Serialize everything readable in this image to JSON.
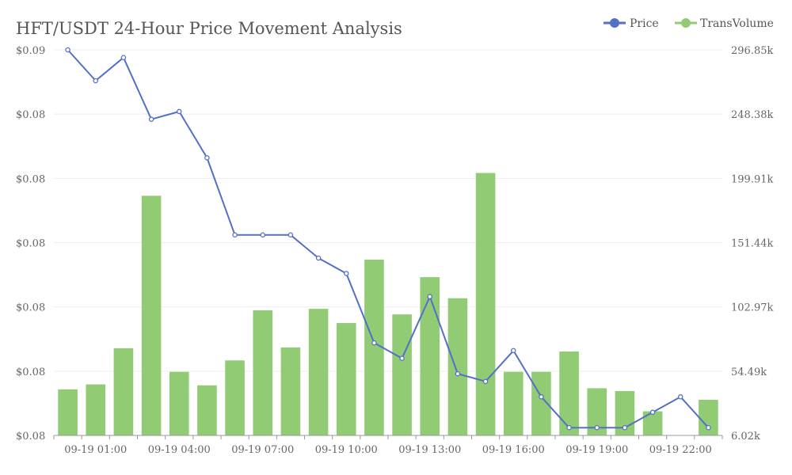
{
  "chart_data": {
    "type": "bar",
    "title": "HFT/USDT 24-Hour Price Movement Analysis",
    "categories": [
      "09-19 00:00",
      "09-19 01:00",
      "09-19 02:00",
      "09-19 03:00",
      "09-19 04:00",
      "09-19 05:00",
      "09-19 06:00",
      "09-19 07:00",
      "09-19 08:00",
      "09-19 09:00",
      "09-19 10:00",
      "09-19 11:00",
      "09-19 12:00",
      "09-19 13:00",
      "09-19 14:00",
      "09-19 15:00",
      "09-19 16:00",
      "09-19 17:00",
      "09-19 18:00",
      "09-19 19:00",
      "09-19 20:00",
      "09-19 21:00",
      "09-19 22:00",
      "09-19 23:00"
    ],
    "x_tick_labels": [
      "09-19 01:00",
      "09-19 04:00",
      "09-19 07:00",
      "09-19 10:00",
      "09-19 13:00",
      "09-19 16:00",
      "09-19 19:00",
      "09-19 22:00"
    ],
    "series": [
      {
        "name": "Price",
        "type": "line",
        "axis": "left",
        "color": "#5470c6",
        "values": [
          0.09,
          0.0896,
          0.0899,
          0.0891,
          0.0892,
          0.0886,
          0.0876,
          0.0876,
          0.0876,
          0.0873,
          0.0871,
          0.0862,
          0.086,
          0.0868,
          0.0858,
          0.0857,
          0.0861,
          0.0855,
          0.0851,
          0.0851,
          0.0851,
          0.0853,
          0.0855,
          0.0851
        ]
      },
      {
        "name": "TransVolume",
        "type": "bar",
        "axis": "right",
        "color": "#91cc75",
        "values": [
          40800,
          44500,
          71800,
          186800,
          54000,
          43800,
          62600,
          100400,
          72400,
          101500,
          90800,
          138600,
          97300,
          125400,
          109500,
          204000,
          54000,
          54000,
          69300,
          41600,
          39500,
          24200,
          6020,
          32900
        ]
      }
    ],
    "left_axis": {
      "min": 0.085,
      "max": 0.09,
      "tick_labels": [
        "$0.08",
        "$0.08",
        "$0.08",
        "$0.08",
        "$0.08",
        "$0.08",
        "$0.09"
      ]
    },
    "right_axis": {
      "min": 6020,
      "max": 296850,
      "tick_labels": [
        "6.02k",
        "54.49k",
        "102.97k",
        "151.44k",
        "199.91k",
        "248.38k",
        "296.85k"
      ]
    },
    "legend": {
      "position": "top-right",
      "items": [
        {
          "label": "Price",
          "color": "#5470c6"
        },
        {
          "label": "TransVolume",
          "color": "#91cc75"
        }
      ]
    },
    "grid": true
  }
}
